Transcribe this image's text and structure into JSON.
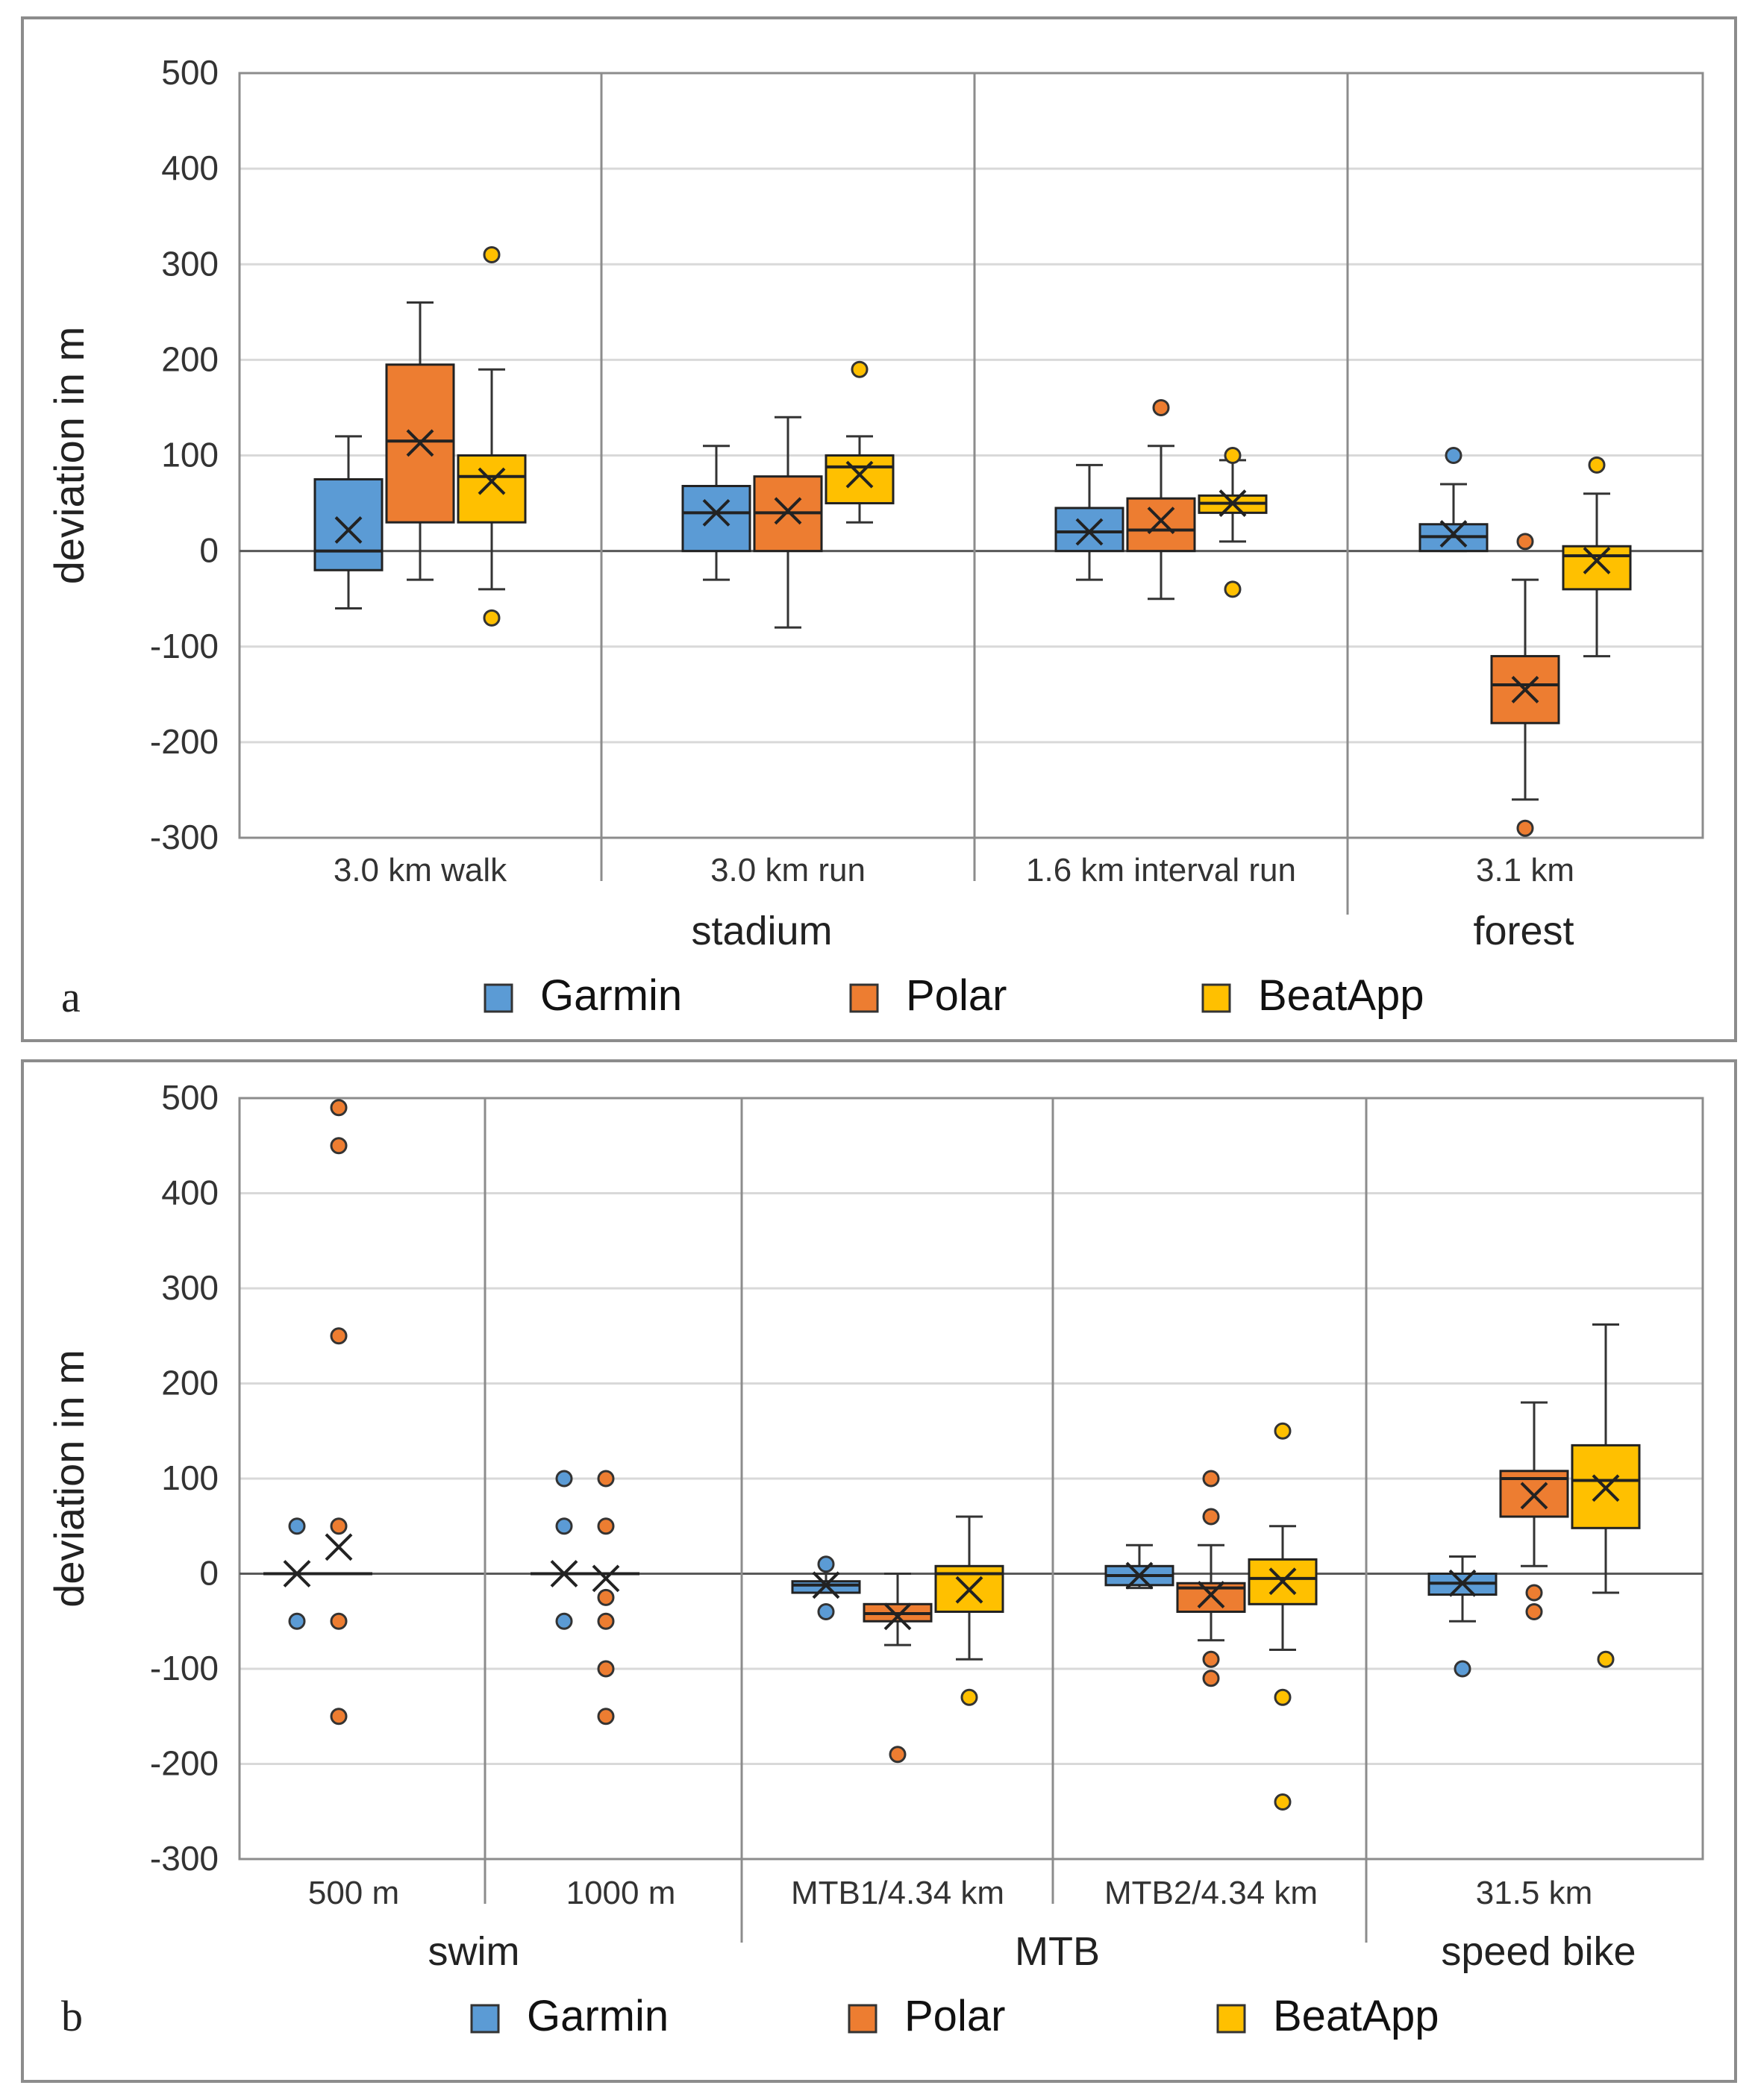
{
  "legend": [
    {
      "name": "Garmin",
      "color": "#5b9bd5"
    },
    {
      "name": "Polar",
      "color": "#ed7d31"
    },
    {
      "name": "BeatApp",
      "color": "#ffc000"
    }
  ],
  "chart_data": [
    {
      "type": "box",
      "panel_label": "a",
      "ylabel": "deviation in m",
      "ylim": [
        -300,
        500
      ],
      "yticks": [
        500,
        400,
        300,
        200,
        100,
        0,
        -100,
        -200,
        -300
      ],
      "groups": [
        {
          "label": "stadium",
          "span": [
            0,
            2
          ]
        },
        {
          "label": "forest",
          "span": [
            3,
            3
          ]
        }
      ],
      "categories": [
        {
          "label": "3.0 km walk",
          "boxes": [
            {
              "series": "Garmin",
              "whisker_low": -60,
              "q1": -20,
              "median": 0,
              "q3": 75,
              "whisker_high": 120,
              "mean": 22,
              "outliers": []
            },
            {
              "series": "Polar",
              "whisker_low": -30,
              "q1": 30,
              "median": 115,
              "q3": 195,
              "whisker_high": 260,
              "mean": 113,
              "outliers": []
            },
            {
              "series": "BeatApp",
              "whisker_low": -40,
              "q1": 30,
              "median": 78,
              "q3": 100,
              "whisker_high": 190,
              "mean": 73,
              "outliers": [
                310,
                -70
              ]
            }
          ]
        },
        {
          "label": "3.0 km run",
          "boxes": [
            {
              "series": "Garmin",
              "whisker_low": -30,
              "q1": 0,
              "median": 40,
              "q3": 68,
              "whisker_high": 110,
              "mean": 40,
              "outliers": []
            },
            {
              "series": "Polar",
              "whisker_low": -80,
              "q1": 0,
              "median": 40,
              "q3": 78,
              "whisker_high": 140,
              "mean": 42,
              "outliers": []
            },
            {
              "series": "BeatApp",
              "whisker_low": 30,
              "q1": 50,
              "median": 88,
              "q3": 100,
              "whisker_high": 120,
              "mean": 80,
              "outliers": [
                190
              ]
            }
          ]
        },
        {
          "label": "1.6 km interval run",
          "boxes": [
            {
              "series": "Garmin",
              "whisker_low": -30,
              "q1": 0,
              "median": 20,
              "q3": 45,
              "whisker_high": 90,
              "mean": 20,
              "outliers": []
            },
            {
              "series": "Polar",
              "whisker_low": -50,
              "q1": 0,
              "median": 22,
              "q3": 55,
              "whisker_high": 110,
              "mean": 32,
              "outliers": [
                150
              ]
            },
            {
              "series": "BeatApp",
              "whisker_low": 10,
              "q1": 40,
              "median": 50,
              "q3": 58,
              "whisker_high": 95,
              "mean": 50,
              "outliers": [
                100,
                -40
              ]
            }
          ]
        },
        {
          "label": "3.1 km",
          "boxes": [
            {
              "series": "Garmin",
              "whisker_low": 0,
              "q1": 0,
              "median": 15,
              "q3": 28,
              "whisker_high": 70,
              "mean": 18,
              "outliers": [
                100
              ]
            },
            {
              "series": "Polar",
              "whisker_low": -260,
              "q1": -180,
              "median": -140,
              "q3": -110,
              "whisker_high": -30,
              "mean": -145,
              "outliers": [
                10,
                -290
              ]
            },
            {
              "series": "BeatApp",
              "whisker_low": -110,
              "q1": -40,
              "median": -5,
              "q3": 5,
              "whisker_high": 60,
              "mean": -10,
              "outliers": [
                90
              ]
            }
          ]
        }
      ]
    },
    {
      "type": "box",
      "panel_label": "b",
      "ylabel": "deviation in m",
      "ylim": [
        -300,
        500
      ],
      "yticks": [
        500,
        400,
        300,
        200,
        100,
        0,
        -100,
        -200,
        -300
      ],
      "groups": [
        {
          "label": "swim",
          "span": [
            0,
            1
          ]
        },
        {
          "label": "MTB",
          "span": [
            2,
            3
          ]
        },
        {
          "label": "speed bike",
          "span": [
            4,
            4
          ]
        }
      ],
      "categories": [
        {
          "label": "500 m",
          "boxes": [
            {
              "series": "Garmin",
              "whisker_low": 0,
              "q1": 0,
              "median": 0,
              "q3": 0,
              "whisker_high": 0,
              "mean": 0,
              "outliers": [
                50,
                -50
              ]
            },
            {
              "series": "Polar",
              "whisker_low": 0,
              "q1": 0,
              "median": 0,
              "q3": 0,
              "whisker_high": 0,
              "mean": 28,
              "outliers": [
                490,
                450,
                250,
                50,
                -50,
                -150
              ]
            }
          ]
        },
        {
          "label": "1000 m",
          "boxes": [
            {
              "series": "Garmin",
              "whisker_low": 0,
              "q1": 0,
              "median": 0,
              "q3": 0,
              "whisker_high": 0,
              "mean": 0,
              "outliers": [
                100,
                50,
                -50
              ]
            },
            {
              "series": "Polar",
              "whisker_low": 0,
              "q1": 0,
              "median": 0,
              "q3": 0,
              "whisker_high": 0,
              "mean": -5,
              "outliers": [
                100,
                50,
                -25,
                -50,
                -100,
                -150
              ]
            }
          ]
        },
        {
          "label": "MTB1/4.34 km",
          "boxes": [
            {
              "series": "Garmin",
              "whisker_low": -20,
              "q1": -20,
              "median": -12,
              "q3": -8,
              "whisker_high": 0,
              "mean": -12,
              "outliers": [
                10,
                -40
              ]
            },
            {
              "series": "Polar",
              "whisker_low": -75,
              "q1": -50,
              "median": -42,
              "q3": -32,
              "whisker_high": 0,
              "mean": -45,
              "outliers": [
                -190
              ]
            },
            {
              "series": "BeatApp",
              "whisker_low": -90,
              "q1": -40,
              "median": 0,
              "q3": 8,
              "whisker_high": 60,
              "mean": -17,
              "outliers": [
                -130
              ]
            }
          ]
        },
        {
          "label": "MTB2/4.34 km",
          "boxes": [
            {
              "series": "Garmin",
              "whisker_low": -15,
              "q1": -12,
              "median": -2,
              "q3": 8,
              "whisker_high": 30,
              "mean": -2,
              "outliers": []
            },
            {
              "series": "Polar",
              "whisker_low": -70,
              "q1": -40,
              "median": -15,
              "q3": -10,
              "whisker_high": 30,
              "mean": -22,
              "outliers": [
                100,
                60,
                -90,
                -110
              ]
            },
            {
              "series": "BeatApp",
              "whisker_low": -80,
              "q1": -32,
              "median": -5,
              "q3": 15,
              "whisker_high": 50,
              "mean": -8,
              "outliers": [
                150,
                -130,
                -240
              ]
            }
          ]
        },
        {
          "label": "31.5 km",
          "boxes": [
            {
              "series": "Garmin",
              "whisker_low": -50,
              "q1": -22,
              "median": -10,
              "q3": 0,
              "whisker_high": 18,
              "mean": -10,
              "outliers": [
                -100
              ]
            },
            {
              "series": "Polar",
              "whisker_low": 8,
              "q1": 60,
              "median": 100,
              "q3": 108,
              "whisker_high": 180,
              "mean": 82,
              "outliers": [
                -20,
                -40
              ]
            },
            {
              "series": "BeatApp",
              "whisker_low": -20,
              "q1": 48,
              "median": 98,
              "q3": 135,
              "whisker_high": 262,
              "mean": 90,
              "outliers": [
                -90
              ]
            }
          ]
        }
      ]
    }
  ]
}
